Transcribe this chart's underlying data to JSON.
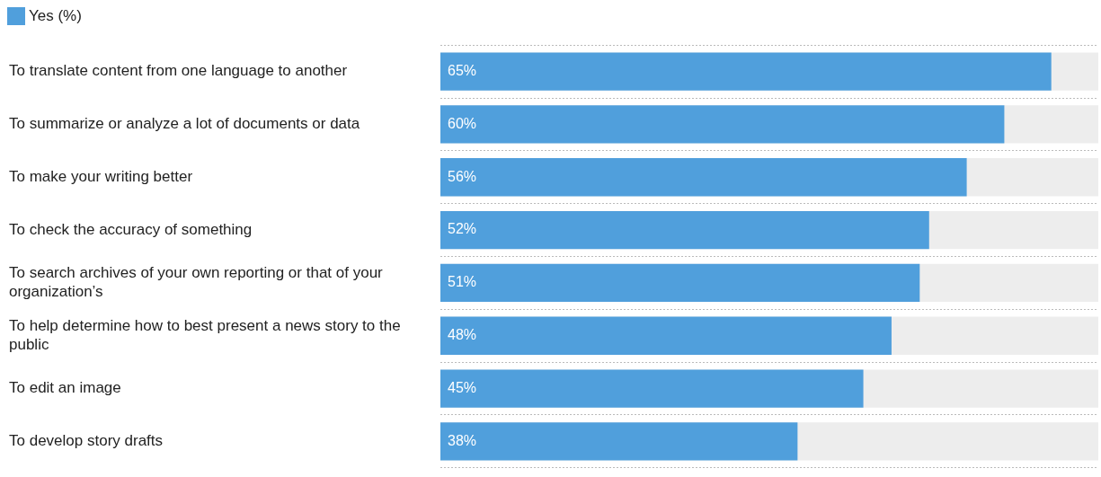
{
  "chart_data": {
    "type": "bar",
    "orientation": "horizontal",
    "categories": [
      "To translate content from one language to another",
      "To summarize or analyze a lot of documents or data",
      "To make your writing better",
      "To check the accuracy of something",
      "To search archives of your own reporting or that of your organization’s",
      "To help determine how to best present a news story to the public",
      "To edit an image",
      "To develop story drafts"
    ],
    "series": [
      {
        "name": "Yes (%)",
        "color": "#509fdc",
        "values": [
          65,
          60,
          56,
          52,
          51,
          48,
          45,
          38
        ],
        "value_labels": [
          "65%",
          "60%",
          "56%",
          "52%",
          "51%",
          "48%",
          "45%",
          "38%"
        ]
      }
    ],
    "tick_labels": "y",
    "grid": "y",
    "legend": "top left"
  }
}
